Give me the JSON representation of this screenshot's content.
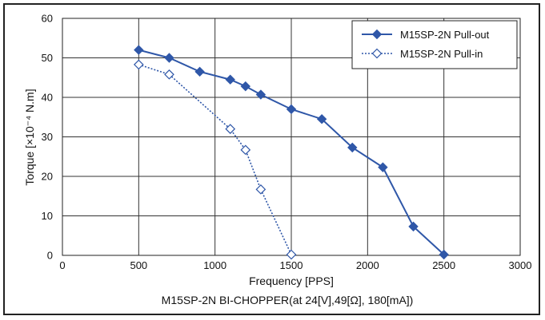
{
  "chart_data": {
    "type": "line",
    "title": "",
    "xlabel": "Frequency [PPS]",
    "ylabel": "Torque [×10⁻⁴ N.m]",
    "caption": "M15SP-2N BI-CHOPPER(at 24[V],49[Ω], 180[mA])",
    "xlim": [
      0,
      3000
    ],
    "ylim": [
      0,
      60
    ],
    "x_ticks": [
      0,
      500,
      1000,
      1500,
      2000,
      2500,
      3000
    ],
    "y_ticks": [
      0,
      10,
      20,
      30,
      40,
      50,
      60
    ],
    "grid": true,
    "legend_position": "top-right",
    "series": [
      {
        "name": "M15SP-2N Pull-out",
        "style": "solid",
        "marker": "filled-diamond",
        "color": "#2f57a8",
        "x": [
          500,
          700,
          900,
          1100,
          1200,
          1300,
          1500,
          1700,
          1900,
          2100,
          2300,
          2500
        ],
        "y": [
          52,
          50,
          46.5,
          44.5,
          42.8,
          40.7,
          37,
          34.5,
          27.3,
          22.3,
          7.3,
          0.2
        ]
      },
      {
        "name": "M15SP-2N Pull-in",
        "style": "dotted",
        "marker": "open-diamond",
        "color": "#2f57a8",
        "x": [
          500,
          700,
          1100,
          1200,
          1300,
          1500
        ],
        "y": [
          48.3,
          45.8,
          32,
          26.7,
          16.7,
          0.2
        ]
      }
    ]
  }
}
